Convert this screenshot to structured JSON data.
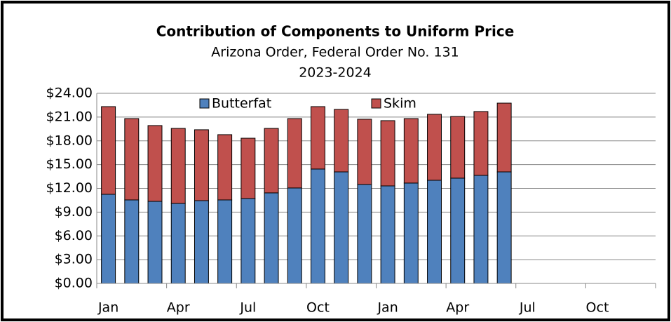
{
  "chart_data": {
    "type": "stacked_bar",
    "title": "Contribution of Components to Uniform Price",
    "subtitle": "Arizona Order, Federal Order No. 131",
    "period": "2023-2024",
    "categories": [
      "Jan",
      null,
      null,
      "Apr",
      null,
      null,
      "Jul",
      null,
      null,
      "Oct",
      null,
      null,
      "Jan",
      null,
      null,
      "Apr",
      null,
      null,
      "Jul",
      null,
      null,
      "Oct",
      null,
      null
    ],
    "series": [
      {
        "name": "Butterfat",
        "color": "#4f81bd",
        "values": [
          11.25,
          10.54,
          10.36,
          10.1,
          10.45,
          10.54,
          10.72,
          11.43,
          12.05,
          14.44,
          14.08,
          12.49,
          12.31,
          12.67,
          13.02,
          13.29,
          13.64,
          14.08,
          null,
          null,
          null,
          null,
          null,
          null
        ]
      },
      {
        "name": "Skim",
        "color": "#c0504d",
        "values": [
          11.07,
          10.27,
          9.57,
          9.47,
          8.95,
          8.24,
          7.61,
          8.14,
          8.76,
          7.88,
          7.89,
          8.24,
          8.24,
          8.14,
          8.33,
          7.79,
          8.06,
          8.68,
          null,
          null,
          null,
          null,
          null,
          null
        ]
      }
    ],
    "ylim": [
      0,
      24
    ],
    "yticks": [
      {
        "value": 0,
        "label": "$0.00"
      },
      {
        "value": 3,
        "label": "$3.00"
      },
      {
        "value": 6,
        "label": "$6.00"
      },
      {
        "value": 9,
        "label": "$9.00"
      },
      {
        "value": 12,
        "label": "$12.00"
      },
      {
        "value": 15,
        "label": "$15.00"
      },
      {
        "value": 18,
        "label": "$18.00"
      },
      {
        "value": 21,
        "label": "$21.00"
      },
      {
        "value": 24,
        "label": "$24.00"
      }
    ],
    "grid": true,
    "legend": "top"
  }
}
